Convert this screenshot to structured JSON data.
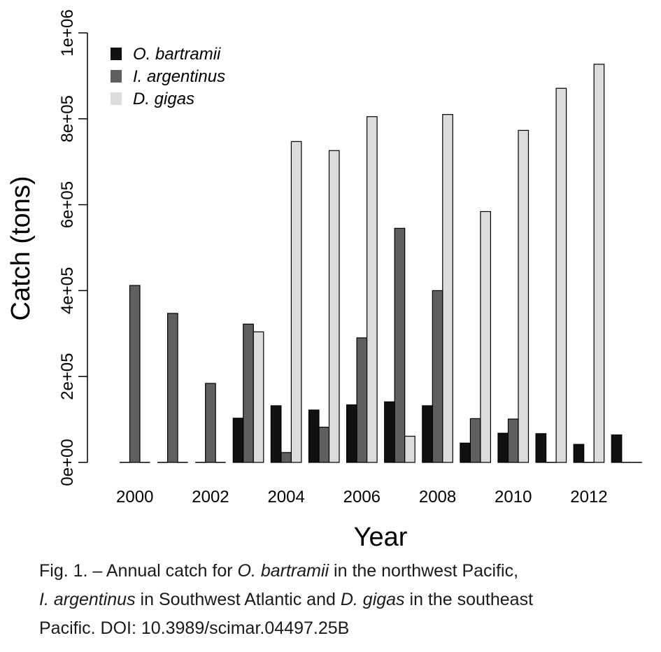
{
  "chart_data": {
    "type": "bar",
    "xlabel": "Year",
    "ylabel": "Catch (tons)",
    "ylim": [
      0,
      1000000
    ],
    "yticks": [
      0,
      200000,
      400000,
      600000,
      800000,
      1000000
    ],
    "ytick_labels": [
      "0e+00",
      "2e+05",
      "4e+05",
      "6e+05",
      "8e+05",
      "1e+06"
    ],
    "xtick_labels": [
      "2000",
      "2002",
      "2004",
      "2006",
      "2008",
      "2010",
      "2012"
    ],
    "categories": [
      "2000",
      "2001",
      "2002",
      "2003",
      "2004",
      "2005",
      "2006",
      "2007",
      "2008",
      "2009",
      "2010",
      "2011",
      "2012",
      "2013"
    ],
    "legend_position": "top-left",
    "grid": false,
    "series": [
      {
        "name": "O. bartramii",
        "color": "#111111",
        "values": [
          0,
          0,
          0,
          103000,
          132000,
          122000,
          134000,
          141000,
          132000,
          45000,
          68000,
          67000,
          42000,
          64000
        ]
      },
      {
        "name": "I. argentinus",
        "color": "#5f5f5f",
        "values": [
          412000,
          347000,
          184000,
          322000,
          23000,
          82000,
          290000,
          545000,
          400000,
          102000,
          101000,
          0,
          0,
          0
        ]
      },
      {
        "name": "D. gigas",
        "color": "#dcdcdc",
        "values": [
          0,
          0,
          0,
          304000,
          747000,
          726000,
          805000,
          61000,
          810000,
          584000,
          773000,
          871000,
          927000,
          0
        ]
      }
    ]
  },
  "caption": {
    "line1": {
      "pre": "Fig. 1. – Annual catch for ",
      "italic": "O. bartramii",
      "post": " in the northwest Pacific,"
    },
    "line2": {
      "italic1": "I. argentinus",
      "mid": " in Southwest Atlantic and ",
      "italic2": "D. gigas",
      "post": " in the southeast"
    },
    "line3": "Pacific. DOI: 10.3989/scimar.04497.25B"
  }
}
